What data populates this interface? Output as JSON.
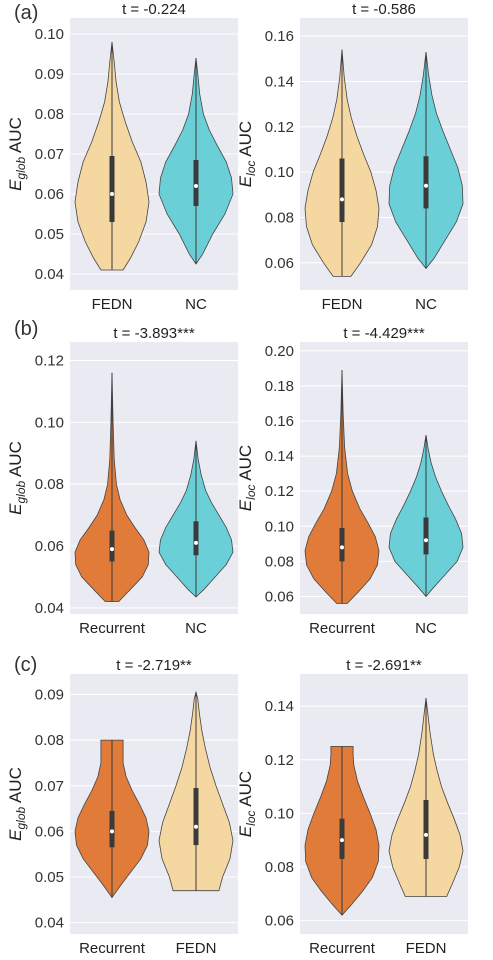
{
  "colors": {
    "background": "#eaeaf2",
    "grid": "#ffffff",
    "FEDN": "#f5d7a2",
    "NC": "#6bcfd8",
    "Recurrent": "#e07b39",
    "edge": "#444444"
  },
  "panel_labels": [
    "(a)",
    "(b)",
    "(c)"
  ],
  "chart_data": [
    {
      "type": "violin",
      "panel": "(a)",
      "title": "t = -0.224",
      "xlabel": "",
      "ylabel_main": "E",
      "ylabel_sub": "glob",
      "ylabel_rest": " AUC",
      "categories": [
        "FEDN",
        "NC"
      ],
      "ylim": [
        0.036,
        0.104
      ],
      "yticks": [
        0.04,
        0.05,
        0.06,
        0.07,
        0.08,
        0.09,
        0.1
      ],
      "ytick_labels": [
        "0.04",
        "0.05",
        "0.06",
        "0.07",
        "0.08",
        "0.09",
        "0.10"
      ],
      "series": [
        {
          "name": "FEDN",
          "min": 0.041,
          "q1": 0.053,
          "median": 0.06,
          "q3": 0.0695,
          "max": 0.098,
          "shape": [
            [
              0.041,
              0.3
            ],
            [
              0.044,
              0.5
            ],
            [
              0.048,
              0.72
            ],
            [
              0.053,
              0.92
            ],
            [
              0.058,
              1.0
            ],
            [
              0.063,
              0.92
            ],
            [
              0.068,
              0.78
            ],
            [
              0.073,
              0.55
            ],
            [
              0.078,
              0.36
            ],
            [
              0.083,
              0.2
            ],
            [
              0.088,
              0.11
            ],
            [
              0.093,
              0.06
            ],
            [
              0.098,
              0.0
            ]
          ]
        },
        {
          "name": "NC",
          "min": 0.0425,
          "q1": 0.057,
          "median": 0.062,
          "q3": 0.0685,
          "max": 0.094,
          "shape": [
            [
              0.0425,
              0.0
            ],
            [
              0.045,
              0.18
            ],
            [
              0.05,
              0.45
            ],
            [
              0.055,
              0.78
            ],
            [
              0.06,
              1.0
            ],
            [
              0.064,
              0.96
            ],
            [
              0.068,
              0.82
            ],
            [
              0.072,
              0.58
            ],
            [
              0.076,
              0.36
            ],
            [
              0.08,
              0.2
            ],
            [
              0.085,
              0.1
            ],
            [
              0.09,
              0.05
            ],
            [
              0.094,
              0.0
            ]
          ]
        }
      ]
    },
    {
      "type": "violin",
      "panel": "",
      "title": "t = -0.586",
      "xlabel": "",
      "ylabel_main": "E",
      "ylabel_sub": "loc",
      "ylabel_rest": " AUC",
      "categories": [
        "FEDN",
        "NC"
      ],
      "ylim": [
        0.048,
        0.168
      ],
      "yticks": [
        0.06,
        0.08,
        0.1,
        0.12,
        0.14,
        0.16
      ],
      "ytick_labels": [
        "0.06",
        "0.08",
        "0.10",
        "0.12",
        "0.14",
        "0.16"
      ],
      "series": [
        {
          "name": "FEDN",
          "min": 0.054,
          "q1": 0.078,
          "median": 0.088,
          "q3": 0.106,
          "max": 0.154,
          "shape": [
            [
              0.054,
              0.24
            ],
            [
              0.06,
              0.5
            ],
            [
              0.068,
              0.8
            ],
            [
              0.076,
              0.96
            ],
            [
              0.084,
              1.0
            ],
            [
              0.092,
              0.92
            ],
            [
              0.1,
              0.78
            ],
            [
              0.108,
              0.58
            ],
            [
              0.116,
              0.4
            ],
            [
              0.124,
              0.25
            ],
            [
              0.132,
              0.14
            ],
            [
              0.142,
              0.06
            ],
            [
              0.154,
              0.0
            ]
          ]
        },
        {
          "name": "NC",
          "min": 0.0575,
          "q1": 0.084,
          "median": 0.094,
          "q3": 0.107,
          "max": 0.153,
          "shape": [
            [
              0.0575,
              0.0
            ],
            [
              0.062,
              0.22
            ],
            [
              0.07,
              0.52
            ],
            [
              0.078,
              0.82
            ],
            [
              0.086,
              1.0
            ],
            [
              0.094,
              0.98
            ],
            [
              0.102,
              0.86
            ],
            [
              0.11,
              0.66
            ],
            [
              0.118,
              0.46
            ],
            [
              0.126,
              0.28
            ],
            [
              0.134,
              0.16
            ],
            [
              0.143,
              0.07
            ],
            [
              0.153,
              0.0
            ]
          ]
        }
      ]
    },
    {
      "type": "violin",
      "panel": "(b)",
      "title": "t = -3.893***",
      "xlabel": "",
      "ylabel_main": "E",
      "ylabel_sub": "glob",
      "ylabel_rest": " AUC",
      "categories": [
        "Recurrent",
        "NC"
      ],
      "ylim": [
        0.038,
        0.126
      ],
      "yticks": [
        0.04,
        0.06,
        0.08,
        0.1,
        0.12
      ],
      "ytick_labels": [
        "0.04",
        "0.06",
        "0.08",
        "0.10",
        "0.12"
      ],
      "series": [
        {
          "name": "Recurrent",
          "min": 0.042,
          "q1": 0.055,
          "median": 0.059,
          "q3": 0.065,
          "max": 0.116,
          "shape": [
            [
              0.042,
              0.18
            ],
            [
              0.046,
              0.5
            ],
            [
              0.05,
              0.82
            ],
            [
              0.054,
              0.98
            ],
            [
              0.058,
              1.0
            ],
            [
              0.062,
              0.86
            ],
            [
              0.066,
              0.62
            ],
            [
              0.07,
              0.4
            ],
            [
              0.075,
              0.22
            ],
            [
              0.08,
              0.12
            ],
            [
              0.088,
              0.06
            ],
            [
              0.1,
              0.03
            ],
            [
              0.116,
              0.0
            ]
          ]
        },
        {
          "name": "NC",
          "min": 0.0435,
          "q1": 0.057,
          "median": 0.061,
          "q3": 0.068,
          "max": 0.094,
          "shape": [
            [
              0.0435,
              0.0
            ],
            [
              0.046,
              0.22
            ],
            [
              0.05,
              0.52
            ],
            [
              0.054,
              0.82
            ],
            [
              0.058,
              1.0
            ],
            [
              0.062,
              0.96
            ],
            [
              0.066,
              0.82
            ],
            [
              0.07,
              0.62
            ],
            [
              0.074,
              0.42
            ],
            [
              0.078,
              0.26
            ],
            [
              0.083,
              0.14
            ],
            [
              0.088,
              0.06
            ],
            [
              0.094,
              0.0
            ]
          ]
        }
      ]
    },
    {
      "type": "violin",
      "panel": "",
      "title": "t = -4.429***",
      "xlabel": "",
      "ylabel_main": "E",
      "ylabel_sub": "loc",
      "ylabel_rest": " AUC",
      "categories": [
        "Recurrent",
        "NC"
      ],
      "ylim": [
        0.05,
        0.205
      ],
      "yticks": [
        0.06,
        0.08,
        0.1,
        0.12,
        0.14,
        0.16,
        0.18,
        0.2
      ],
      "ytick_labels": [
        "0.06",
        "0.08",
        "0.10",
        "0.12",
        "0.14",
        "0.16",
        "0.18",
        "0.20"
      ],
      "series": [
        {
          "name": "Recurrent",
          "min": 0.056,
          "q1": 0.08,
          "median": 0.088,
          "q3": 0.099,
          "max": 0.189,
          "shape": [
            [
              0.056,
              0.14
            ],
            [
              0.062,
              0.42
            ],
            [
              0.07,
              0.76
            ],
            [
              0.078,
              0.96
            ],
            [
              0.086,
              1.0
            ],
            [
              0.094,
              0.9
            ],
            [
              0.102,
              0.7
            ],
            [
              0.11,
              0.48
            ],
            [
              0.12,
              0.28
            ],
            [
              0.13,
              0.15
            ],
            [
              0.145,
              0.07
            ],
            [
              0.165,
              0.03
            ],
            [
              0.189,
              0.0
            ]
          ]
        },
        {
          "name": "NC",
          "min": 0.06,
          "q1": 0.084,
          "median": 0.092,
          "q3": 0.105,
          "max": 0.152,
          "shape": [
            [
              0.06,
              0.0
            ],
            [
              0.065,
              0.2
            ],
            [
              0.072,
              0.5
            ],
            [
              0.08,
              0.84
            ],
            [
              0.088,
              1.0
            ],
            [
              0.096,
              0.96
            ],
            [
              0.104,
              0.8
            ],
            [
              0.112,
              0.6
            ],
            [
              0.12,
              0.42
            ],
            [
              0.128,
              0.26
            ],
            [
              0.136,
              0.14
            ],
            [
              0.144,
              0.06
            ],
            [
              0.152,
              0.0
            ]
          ]
        }
      ]
    },
    {
      "type": "violin",
      "panel": "(c)",
      "title": "t = -2.719**",
      "xlabel": "",
      "ylabel_main": "E",
      "ylabel_sub": "glob",
      "ylabel_rest": " AUC",
      "categories": [
        "Recurrent",
        "FEDN"
      ],
      "ylim": [
        0.0375,
        0.0945
      ],
      "yticks": [
        0.04,
        0.05,
        0.06,
        0.07,
        0.08,
        0.09
      ],
      "ytick_labels": [
        "0.04",
        "0.05",
        "0.06",
        "0.07",
        "0.08",
        "0.09"
      ],
      "series": [
        {
          "name": "Recurrent",
          "min": 0.0455,
          "q1": 0.0565,
          "median": 0.06,
          "q3": 0.0645,
          "max": 0.08,
          "shape": [
            [
              0.0455,
              0.0
            ],
            [
              0.048,
              0.22
            ],
            [
              0.051,
              0.5
            ],
            [
              0.054,
              0.78
            ],
            [
              0.057,
              0.96
            ],
            [
              0.06,
              1.0
            ],
            [
              0.063,
              0.92
            ],
            [
              0.066,
              0.74
            ],
            [
              0.069,
              0.54
            ],
            [
              0.072,
              0.38
            ],
            [
              0.075,
              0.3
            ],
            [
              0.078,
              0.3
            ],
            [
              0.08,
              0.3
            ]
          ]
        },
        {
          "name": "FEDN",
          "min": 0.047,
          "q1": 0.057,
          "median": 0.061,
          "q3": 0.0695,
          "max": 0.0905,
          "shape": [
            [
              0.047,
              0.62
            ],
            [
              0.05,
              0.72
            ],
            [
              0.054,
              0.92
            ],
            [
              0.058,
              1.0
            ],
            [
              0.062,
              0.9
            ],
            [
              0.066,
              0.72
            ],
            [
              0.07,
              0.54
            ],
            [
              0.074,
              0.38
            ],
            [
              0.078,
              0.26
            ],
            [
              0.082,
              0.16
            ],
            [
              0.086,
              0.09
            ],
            [
              0.089,
              0.05
            ],
            [
              0.0905,
              0.0
            ]
          ]
        }
      ]
    },
    {
      "type": "violin",
      "panel": "",
      "title": "t = -2.691**",
      "xlabel": "",
      "ylabel_main": "E",
      "ylabel_sub": "loc",
      "ylabel_rest": " AUC",
      "categories": [
        "Recurrent",
        "FEDN"
      ],
      "ylim": [
        0.055,
        0.152
      ],
      "yticks": [
        0.06,
        0.08,
        0.1,
        0.12,
        0.14
      ],
      "ytick_labels": [
        "0.06",
        "0.08",
        "0.10",
        "0.12",
        "0.14"
      ],
      "series": [
        {
          "name": "Recurrent",
          "min": 0.062,
          "q1": 0.083,
          "median": 0.09,
          "q3": 0.098,
          "max": 0.125,
          "shape": [
            [
              0.062,
              0.0
            ],
            [
              0.066,
              0.26
            ],
            [
              0.071,
              0.56
            ],
            [
              0.076,
              0.82
            ],
            [
              0.082,
              0.98
            ],
            [
              0.088,
              1.0
            ],
            [
              0.094,
              0.92
            ],
            [
              0.1,
              0.76
            ],
            [
              0.106,
              0.58
            ],
            [
              0.112,
              0.42
            ],
            [
              0.118,
              0.32
            ],
            [
              0.122,
              0.3
            ],
            [
              0.125,
              0.3
            ]
          ]
        },
        {
          "name": "FEDN",
          "min": 0.069,
          "q1": 0.083,
          "median": 0.092,
          "q3": 0.105,
          "max": 0.143,
          "shape": [
            [
              0.069,
              0.56
            ],
            [
              0.074,
              0.72
            ],
            [
              0.08,
              0.9
            ],
            [
              0.086,
              1.0
            ],
            [
              0.092,
              0.92
            ],
            [
              0.098,
              0.76
            ],
            [
              0.104,
              0.58
            ],
            [
              0.11,
              0.42
            ],
            [
              0.116,
              0.3
            ],
            [
              0.122,
              0.2
            ],
            [
              0.13,
              0.11
            ],
            [
              0.137,
              0.05
            ],
            [
              0.143,
              0.0
            ]
          ]
        }
      ]
    }
  ]
}
